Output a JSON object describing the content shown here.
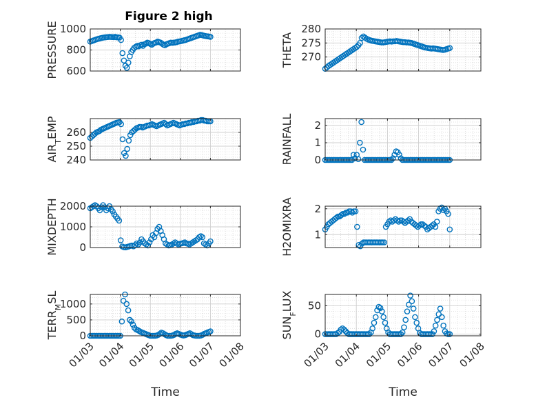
{
  "figure": {
    "title": "Figure 2 high",
    "marker_color": "#0072bd",
    "axis_color": "#262626",
    "grid_color": "#d9d9d9"
  },
  "chart_data": [
    {
      "type": "scatter",
      "ylabel": "PRESSURE",
      "ylabel_sub": "",
      "xlabel": "",
      "xlim": [
        "2024-01-03",
        "2024-01-08"
      ],
      "ylim": [
        600,
        1000
      ],
      "yticks": [
        {
          "v": 600,
          "label": "600"
        },
        {
          "v": 800,
          "label": "800"
        },
        {
          "v": 1000,
          "label": "1000"
        }
      ],
      "xticks": [],
      "grid": true,
      "series": [
        {
          "name": "",
          "x_day_range": [
            "2024-01-03",
            "2024-01-07"
          ],
          "y": [
            880,
            885,
            890,
            895,
            900,
            905,
            908,
            912,
            915,
            918,
            920,
            922,
            923,
            925,
            924,
            923,
            922,
            925,
            921,
            920,
            918,
            895,
            770,
            700,
            650,
            630,
            680,
            740,
            780,
            800,
            820,
            830,
            840,
            835,
            845,
            850,
            840,
            855,
            860,
            870,
            865,
            858,
            850,
            860,
            868,
            872,
            880,
            875,
            870,
            860,
            850,
            845,
            855,
            860,
            865,
            870,
            868,
            870,
            872,
            875,
            880,
            882,
            885,
            888,
            892,
            895,
            900,
            905,
            910,
            915,
            920,
            925,
            930,
            935,
            940,
            945,
            942,
            938,
            935,
            932,
            930,
            928,
            925
          ]
        }
      ]
    },
    {
      "type": "scatter",
      "ylabel": "THETA",
      "ylabel_sub": "",
      "xlabel": "",
      "xlim": [
        "2024-01-03",
        "2024-01-08"
      ],
      "ylim": [
        265,
        280
      ],
      "yticks": [
        {
          "v": 270,
          "label": "270"
        },
        {
          "v": 275,
          "label": "275"
        },
        {
          "v": 280,
          "label": "280"
        }
      ],
      "xticks": [],
      "grid": true,
      "series": [
        {
          "name": "",
          "x_day_range": [
            "2024-01-03",
            "2024-01-07"
          ],
          "y": [
            265.8,
            266.3,
            266.8,
            267.2,
            267.6,
            268,
            268.4,
            268.8,
            269.2,
            269.6,
            270,
            270.4,
            270.8,
            271.2,
            271.6,
            272,
            272.4,
            272.8,
            273.2,
            273.6,
            274.2,
            275.0,
            276.8,
            277.3,
            276.9,
            276.5,
            276.2,
            276.0,
            275.8,
            275.7,
            275.6,
            275.5,
            275.4,
            275.3,
            275.2,
            275.2,
            275.3,
            275.4,
            275.5,
            275.6,
            275.5,
            275.6,
            275.6,
            275.7,
            275.6,
            275.5,
            275.4,
            275.3,
            275.3,
            275.2,
            275.2,
            275.1,
            275.0,
            274.8,
            274.6,
            274.4,
            274.2,
            274.0,
            273.8,
            273.6,
            273.4,
            273.3,
            273.2,
            273.1,
            273.0,
            273.1,
            273.0,
            272.9,
            272.8,
            272.7,
            272.6,
            272.5,
            272.6,
            272.8,
            273.0,
            273.2
          ]
        }
      ]
    },
    {
      "type": "scatter",
      "ylabel": "AIR",
      "ylabel_sub": "T",
      "ylabel_rest": "EMP",
      "xlabel": "",
      "xlim": [
        "2024-01-03",
        "2024-01-08"
      ],
      "ylim": [
        240,
        270
      ],
      "yticks": [
        {
          "v": 240,
          "label": "240"
        },
        {
          "v": 250,
          "label": "250"
        },
        {
          "v": 260,
          "label": "260"
        }
      ],
      "xticks": [],
      "grid": true,
      "series": [
        {
          "name": "",
          "x_day_range": [
            "2024-01-03",
            "2024-01-07"
          ],
          "y": [
            256,
            257,
            258,
            259,
            260,
            260.5,
            261,
            262,
            262.5,
            263,
            263.5,
            264,
            264.5,
            265,
            265.5,
            266,
            266.5,
            267,
            267.2,
            267.5,
            266,
            255,
            245,
            243,
            248,
            254,
            258,
            260,
            261,
            262,
            263,
            263.5,
            264,
            264,
            263.5,
            264,
            264.5,
            265,
            265,
            265.5,
            266,
            265.5,
            265,
            264.5,
            265,
            265.5,
            266,
            266.5,
            267,
            266,
            265,
            265.5,
            266,
            266.5,
            267,
            266.5,
            266,
            265.5,
            265,
            265.5,
            266,
            266,
            266.5,
            266.5,
            267,
            267,
            267.5,
            267.5,
            268,
            268,
            268.5,
            268.5,
            269,
            269,
            268.5,
            268.5,
            268,
            268,
            268
          ]
        }
      ]
    },
    {
      "type": "scatter",
      "ylabel": "RAINFALL",
      "ylabel_sub": "",
      "xlabel": "",
      "xlim": [
        "2024-01-03",
        "2024-01-08"
      ],
      "ylim": [
        0,
        2.4
      ],
      "yticks": [
        {
          "v": 0,
          "label": "0"
        },
        {
          "v": 1,
          "label": "1"
        },
        {
          "v": 2,
          "label": "2"
        }
      ],
      "xticks": [],
      "grid": true,
      "series": [
        {
          "name": "",
          "x_day_range": [
            "2024-01-03",
            "2024-01-07"
          ],
          "y": [
            0,
            0,
            0,
            0,
            0,
            0,
            0,
            0,
            0,
            0,
            0,
            0,
            0,
            0,
            0,
            0,
            0,
            0,
            0.3,
            0.1,
            0.3,
            0.05,
            1.0,
            2.2,
            0.6,
            0,
            0,
            0,
            0,
            0,
            0,
            0,
            0,
            0,
            0,
            0,
            0,
            0,
            0,
            0,
            0,
            0,
            0,
            0.1,
            0.3,
            0.5,
            0.45,
            0.3,
            0.1,
            0,
            0,
            0,
            0,
            0,
            0,
            0,
            0,
            0,
            0,
            0,
            0,
            0,
            0,
            0,
            0,
            0,
            0,
            0,
            0,
            0,
            0,
            0,
            0,
            0,
            0,
            0,
            0,
            0,
            0,
            0
          ]
        }
      ]
    },
    {
      "type": "scatter",
      "ylabel": "MIXDEPTH",
      "ylabel_sub": "",
      "xlabel": "",
      "xlim": [
        "2024-01-03",
        "2024-01-08"
      ],
      "ylim": [
        0,
        2000
      ],
      "yticks": [
        {
          "v": 0,
          "label": "0"
        },
        {
          "v": 1000,
          "label": "1000"
        },
        {
          "v": 2000,
          "label": "2000"
        }
      ],
      "xticks": [],
      "grid": true,
      "series": [
        {
          "name": "",
          "x_day_range": [
            "2024-01-03",
            "2024-01-07"
          ],
          "y": [
            1900,
            1950,
            2000,
            2050,
            2000,
            1900,
            1800,
            1950,
            2050,
            1950,
            1800,
            1900,
            2000,
            1850,
            1750,
            1600,
            1500,
            1400,
            1300,
            350,
            50,
            20,
            10,
            30,
            50,
            80,
            100,
            60,
            120,
            200,
            150,
            250,
            400,
            300,
            200,
            150,
            100,
            250,
            400,
            600,
            500,
            700,
            900,
            1000,
            800,
            600,
            400,
            200,
            150,
            100,
            120,
            150,
            200,
            250,
            200,
            150,
            180,
            200,
            220,
            250,
            200,
            180,
            150,
            200,
            250,
            300,
            350,
            400,
            500,
            550,
            500,
            200,
            150,
            100,
            200,
            300
          ]
        }
      ]
    },
    {
      "type": "scatter",
      "ylabel": "H2OMIXRA",
      "ylabel_sub": "",
      "xlabel": "",
      "xlim": [
        "2024-01-03",
        "2024-01-08"
      ],
      "ylim": [
        0.5,
        2.1
      ],
      "yticks": [
        {
          "v": 1,
          "label": "1"
        },
        {
          "v": 2,
          "label": "2"
        }
      ],
      "xticks": [],
      "grid": true,
      "series": [
        {
          "name": "",
          "x_day_range": [
            "2024-01-03",
            "2024-01-07"
          ],
          "y": [
            1.2,
            1.3,
            1.4,
            1.45,
            1.5,
            1.55,
            1.6,
            1.65,
            1.7,
            1.7,
            1.75,
            1.8,
            1.8,
            1.85,
            1.85,
            1.9,
            1.9,
            1.85,
            1.9,
            1.9,
            1.3,
            0.6,
            0.55,
            0.65,
            0.7,
            0.7,
            0.7,
            0.7,
            0.7,
            0.7,
            0.7,
            0.7,
            0.7,
            0.7,
            0.7,
            0.7,
            0.7,
            0.7,
            1.3,
            1.4,
            1.5,
            1.55,
            1.5,
            1.55,
            1.6,
            1.55,
            1.5,
            1.55,
            1.55,
            1.5,
            1.45,
            1.5,
            1.55,
            1.6,
            1.5,
            1.45,
            1.4,
            1.35,
            1.3,
            1.35,
            1.4,
            1.4,
            1.35,
            1.3,
            1.2,
            1.25,
            1.3,
            1.35,
            1.4,
            1.3,
            1.5,
            1.9,
            2.0,
            2.05,
            1.95,
            2.0,
            1.9,
            1.8,
            1.2
          ]
        }
      ]
    },
    {
      "type": "scatter",
      "ylabel": "TERR",
      "ylabel_sub": "M",
      "ylabel_rest": "SL",
      "xlabel": "Time",
      "xlim": [
        "2024-01-03",
        "2024-01-08"
      ],
      "ylim": [
        0,
        1300
      ],
      "yticks": [
        {
          "v": 0,
          "label": "0"
        },
        {
          "v": 500,
          "label": "500"
        },
        {
          "v": 1000,
          "label": "1000"
        }
      ],
      "xticks": [
        "01/03",
        "01/04",
        "01/05",
        "01/06",
        "01/07",
        "01/08"
      ],
      "grid": true,
      "series": [
        {
          "name": "",
          "x_day_range": [
            "2024-01-03",
            "2024-01-07"
          ],
          "y": [
            0,
            0,
            0,
            0,
            0,
            0,
            0,
            0,
            0,
            0,
            0,
            0,
            0,
            0,
            0,
            0,
            0,
            0,
            0,
            0,
            450,
            1100,
            1300,
            1000,
            800,
            500,
            450,
            350,
            250,
            200,
            180,
            150,
            120,
            100,
            80,
            60,
            40,
            20,
            0,
            0,
            0,
            0,
            10,
            30,
            60,
            100,
            80,
            50,
            20,
            0,
            0,
            0,
            10,
            30,
            60,
            80,
            60,
            40,
            20,
            10,
            20,
            40,
            60,
            80,
            50,
            20,
            10,
            0,
            0,
            0,
            10,
            30,
            60,
            80,
            100,
            120,
            140
          ]
        }
      ]
    },
    {
      "type": "scatter",
      "ylabel": "SUN",
      "ylabel_sub": "F",
      "ylabel_rest": "LUX",
      "xlabel": "Time",
      "xlim": [
        "2024-01-03",
        "2024-01-08"
      ],
      "ylim": [
        -3,
        70
      ],
      "yticks": [
        {
          "v": 0,
          "label": "0"
        },
        {
          "v": 50,
          "label": "50"
        }
      ],
      "xticks": [
        "01/03",
        "01/04",
        "01/05",
        "01/06",
        "01/07",
        "01/08"
      ],
      "grid": true,
      "series": [
        {
          "name": "",
          "x_day_range": [
            "2024-01-03",
            "2024-01-07"
          ],
          "y": [
            0,
            0,
            0,
            0,
            0,
            0,
            0,
            0,
            2,
            4,
            8,
            10,
            8,
            5,
            2,
            0,
            0,
            0,
            0,
            0,
            0,
            0,
            0,
            0,
            0,
            0,
            0,
            0,
            0,
            3,
            10,
            20,
            30,
            42,
            48,
            46,
            40,
            30,
            20,
            10,
            3,
            0,
            0,
            0,
            0,
            0,
            0,
            0,
            0,
            3,
            12,
            25,
            40,
            52,
            68,
            58,
            45,
            30,
            20,
            10,
            2,
            0,
            0,
            0,
            0,
            0,
            0,
            0,
            0,
            5,
            15,
            25,
            35,
            45,
            30,
            15,
            5,
            1,
            0,
            0
          ]
        }
      ]
    }
  ]
}
